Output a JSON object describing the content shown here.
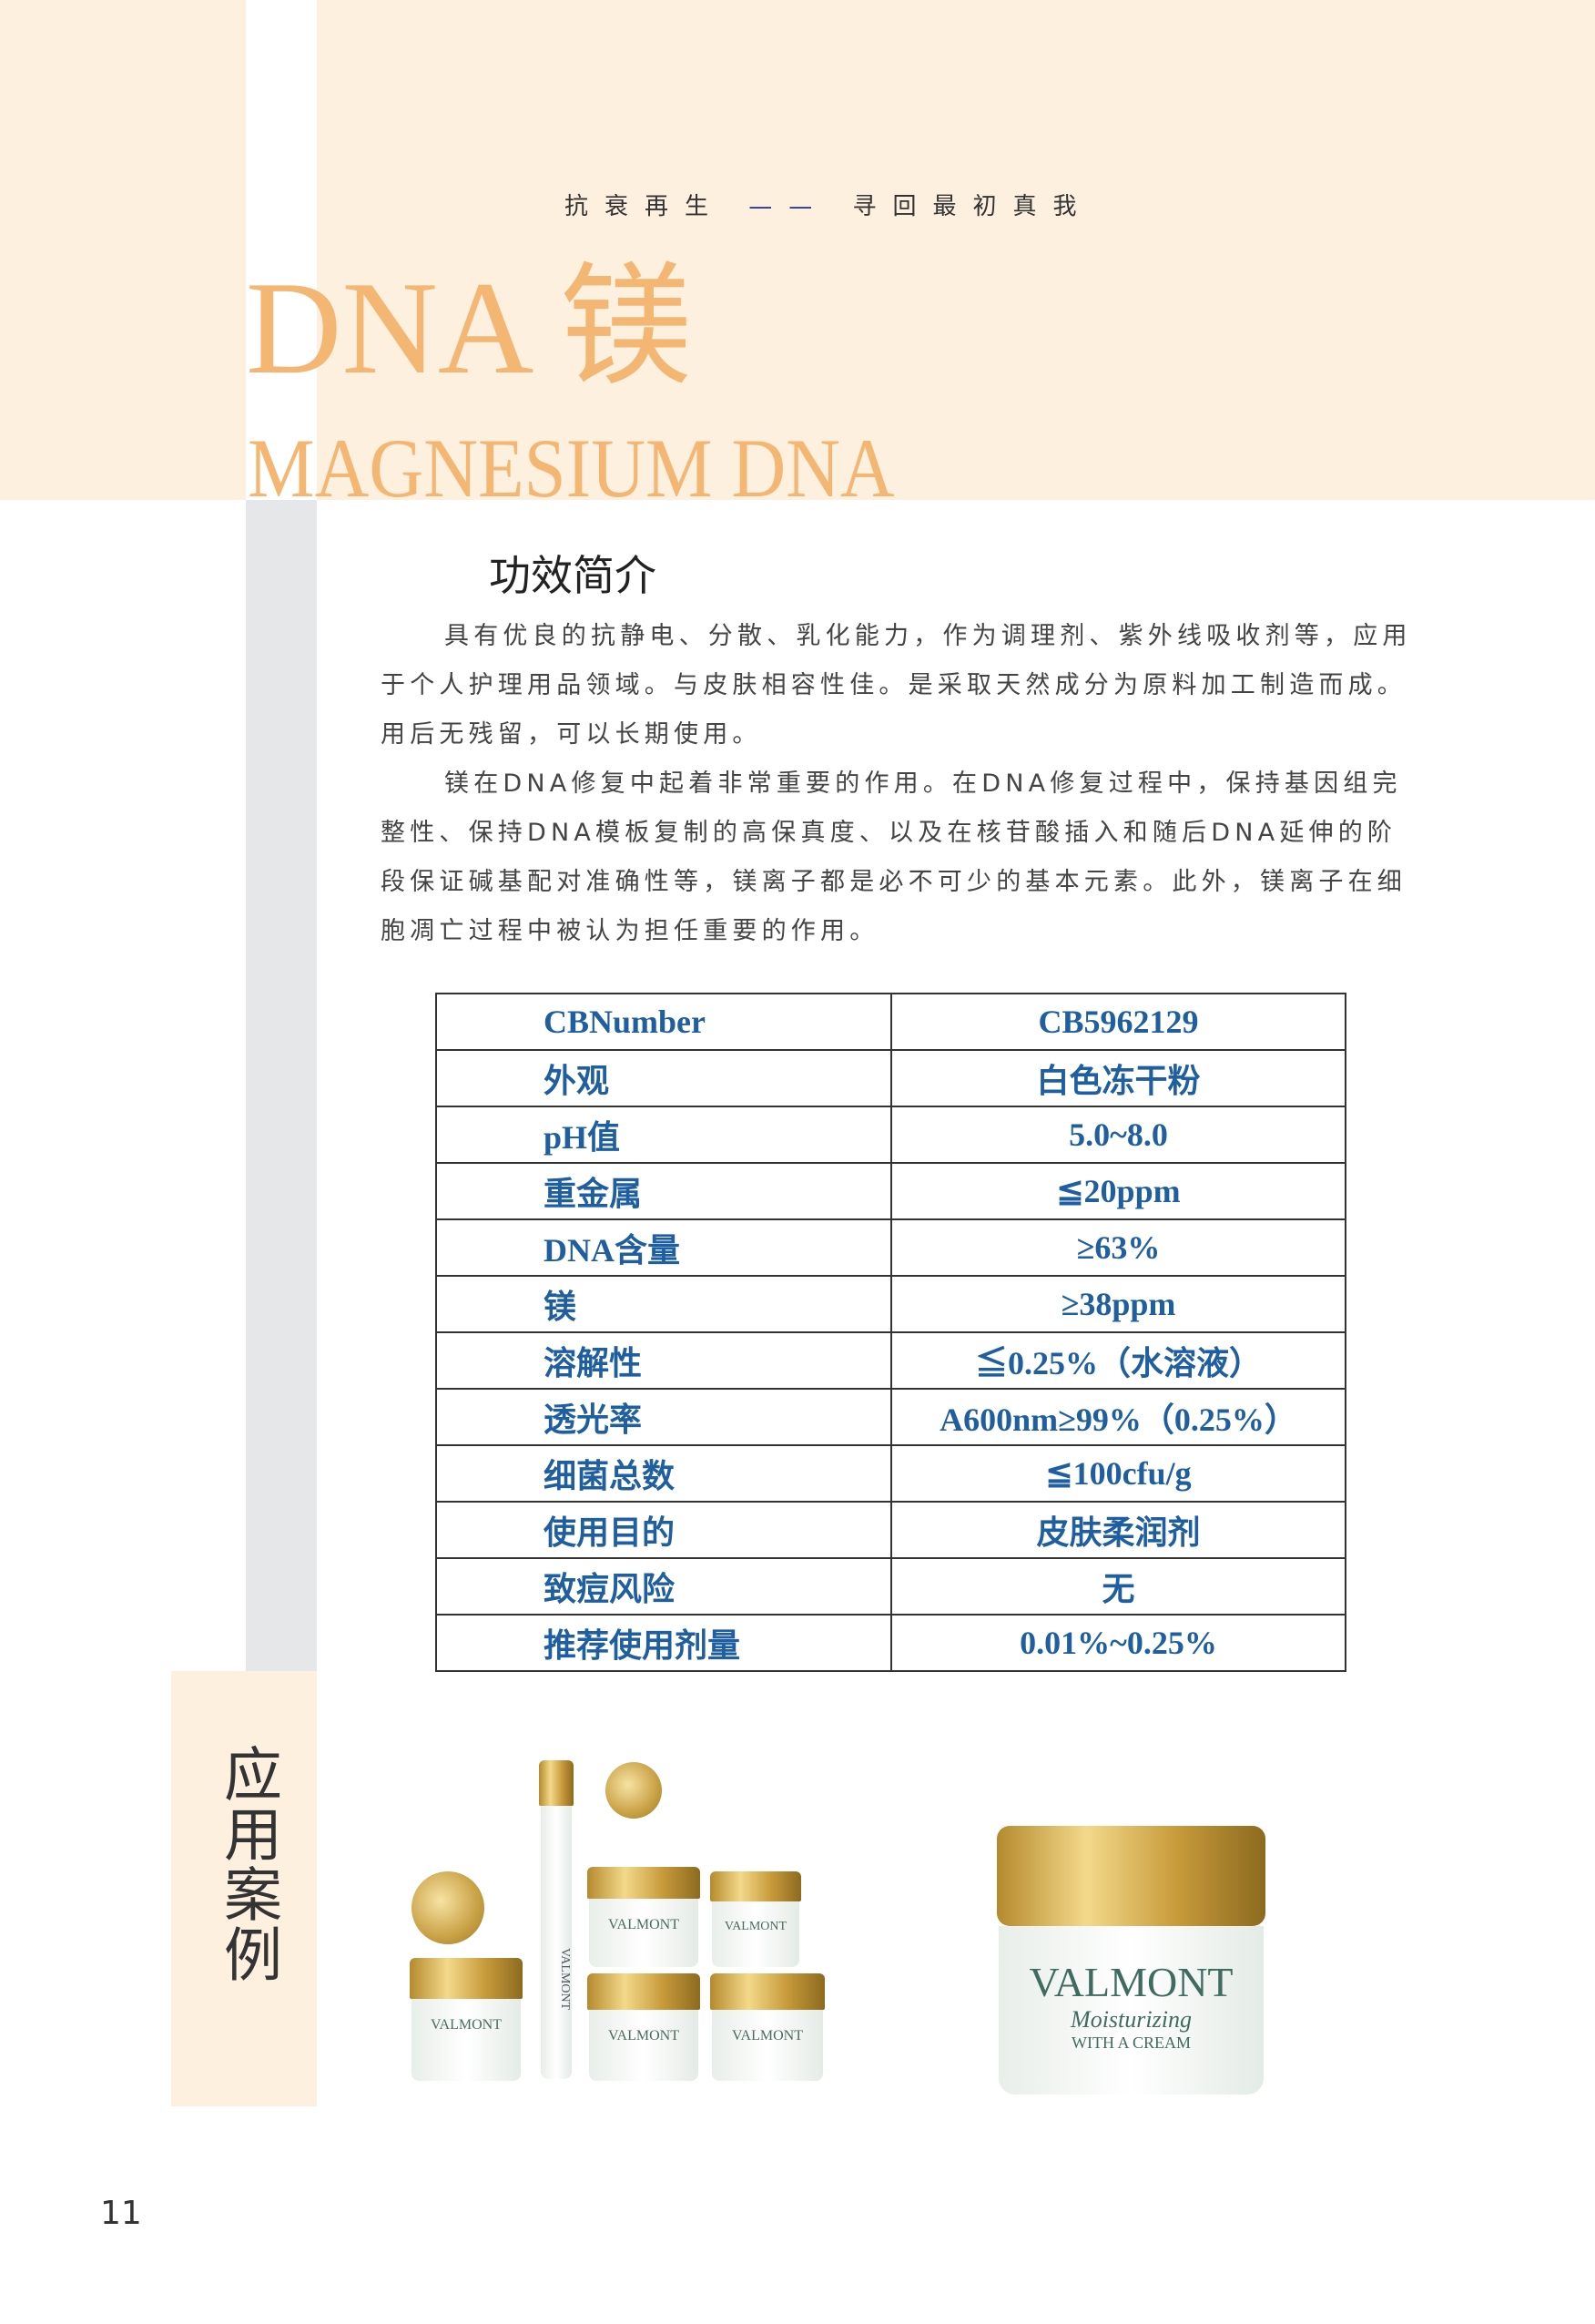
{
  "header": {
    "tagline_left": "抗衰再生",
    "tagline_dash": "——",
    "tagline_right": "寻回最初真我",
    "title_cn": "DNA 镁",
    "title_en": "MAGNESIUM DNA"
  },
  "intro": {
    "heading": "功效简介",
    "paragraphs": [
      "具有优良的抗静电、分散、乳化能力，作为调理剂、紫外线吸收剂等，应用于个人护理用品领域。与皮肤相容性佳。是采取天然成分为原料加工制造而成。用后无残留，可以长期使用。",
      "镁在DNA修复中起着非常重要的作用。在DNA修复过程中，保持基因组完整性、保持DNA模板复制的高保真度、以及在核苷酸插入和随后DNA延伸的阶段保证碱基配对准确性等，镁离子都是必不可少的基本元素。此外，镁离子在细胞凋亡过程中被认为担任重要的作用。"
    ]
  },
  "spec_table": {
    "rows": [
      {
        "key": "CBNumber",
        "value": "CB5962129"
      },
      {
        "key": "外观",
        "value": "白色冻干粉"
      },
      {
        "key": "pH值",
        "value": "5.0~8.0"
      },
      {
        "key": "重金属",
        "value": "≦20ppm"
      },
      {
        "key": "DNA含量",
        "value": "≥63%"
      },
      {
        "key": "镁",
        "value": "≥38ppm"
      },
      {
        "key": "溶解性",
        "value": "≦0.25%（水溶液）"
      },
      {
        "key": "透光率",
        "value": "A600nm≥99%（0.25%）"
      },
      {
        "key": "细菌总数",
        "value": "≦100cfu/g"
      },
      {
        "key": "使用目的",
        "value": "皮肤柔润剂"
      },
      {
        "key": "致痘风险",
        "value": "无"
      },
      {
        "key": "推荐使用剂量",
        "value": "0.01%~0.25%"
      }
    ]
  },
  "cases": {
    "label": "应用案例",
    "brand": "VALMONT",
    "product_line1": "Moisturizing",
    "product_line2": "WITH A CREAM"
  },
  "colors": {
    "accent": "#f4b673",
    "band": "#fdf0df",
    "table_text": "#1f5fa0"
  },
  "page_number": "11"
}
